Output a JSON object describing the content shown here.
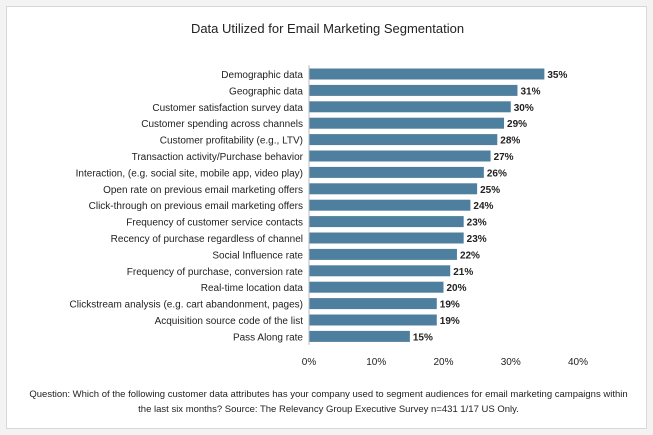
{
  "chart_data": {
    "type": "bar",
    "orientation": "horizontal",
    "title": "Data Utilized for Email Marketing Segmentation",
    "categories": [
      "Demographic data",
      "Geographic data",
      "Customer satisfaction survey data",
      "Customer spending across channels",
      "Customer profitability (e.g., LTV)",
      "Transaction activity/Purchase behavior",
      "Interaction, (e.g. social site, mobile app, video play)",
      "Open rate on previous email marketing offers",
      "Click-through on previous email marketing offers",
      "Frequency of customer service contacts",
      "Recency of purchase regardless of channel",
      "Social Influence rate",
      "Frequency of purchase, conversion rate",
      "Real-time location data",
      "Clickstream analysis (e.g. cart abandonment, pages)",
      "Acquisition source code of the list",
      "Pass Along rate"
    ],
    "values": [
      35,
      31,
      30,
      29,
      28,
      27,
      26,
      25,
      24,
      23,
      23,
      22,
      21,
      20,
      19,
      19,
      15
    ],
    "value_labels": [
      "35%",
      "31%",
      "30%",
      "29%",
      "28%",
      "27%",
      "26%",
      "25%",
      "24%",
      "23%",
      "23%",
      "22%",
      "21%",
      "20%",
      "19%",
      "19%",
      "15%"
    ],
    "xlim": [
      0,
      40
    ],
    "xticks": [
      0,
      10,
      20,
      30,
      40
    ],
    "xtick_labels": [
      "0%",
      "10%",
      "20%",
      "30%",
      "40%"
    ],
    "bar_color": "#4f7f9f",
    "grid": false
  },
  "footnote": "Question: Which of the following customer data attributes has your company used to segment audiences for email marketing campaigns within the last six months? Source: The Relevancy Group Executive Survey n=431 1/17 US Only."
}
